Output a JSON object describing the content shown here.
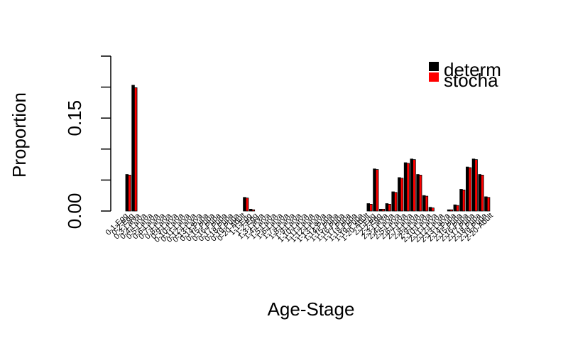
{
  "chart_data": {
    "type": "bar",
    "xlabel": "Age-Stage",
    "ylabel": "Proportion",
    "ylim": [
      0,
      0.25
    ],
    "yticks": [
      "0.00",
      "0.15"
    ],
    "legend": {
      "placement": "top-right",
      "entries": [
        "determ",
        "stocha"
      ]
    },
    "colors": {
      "determ": "#000000",
      "stocha": "#ff0000",
      "border": "#000000"
    },
    "categories": [
      "0-1-Egg",
      "0-2-Egg",
      "0-3-Larva",
      "0-4-Larva",
      "0-5-Larva",
      "0-6-Larva",
      "0-7-Larva",
      "0-8-Larva",
      "0-9-Larva",
      "0-10-Larva",
      "0-11-Larva",
      "0-12-Larva",
      "0-13-Larva",
      "0-14-Pupa",
      "0-15-Pupa",
      "0-16-Pupa",
      "0-17-Pupa",
      "0-18-Pupa",
      "0-19-Pupa",
      "0-20-Adult",
      "1-1-Egg",
      "1-2-Egg",
      "1-3-Larva",
      "1-4-Larva",
      "1-5-Larva",
      "1-6-Larva",
      "1-7-Larva",
      "1-8-Larva",
      "1-9-Larva",
      "1-10-Larva",
      "1-11-Larva",
      "1-12-Larva",
      "1-13-Larva",
      "1-14-Pupa",
      "1-15-Pupa",
      "1-16-Pupa",
      "1-17-Pupa",
      "1-18-Pupa",
      "1-19-Pupa",
      "1-20-Adult",
      "2-1-Egg",
      "2-2-Egg",
      "2-3-Larva",
      "2-4-Larva",
      "2-5-Larva",
      "2-6-Larva",
      "2-7-Larva",
      "2-8-Larva",
      "2-9-Larva",
      "2-10-Larva",
      "2-11-Larva",
      "2-12-Larva",
      "2-13-Larva",
      "2-14-Pupa",
      "2-15-Pupa",
      "2-16-Pupa",
      "2-17-Pupa",
      "2-18-Pupa",
      "2-19-Pupa",
      "2-20-Adult"
    ],
    "series": [
      {
        "name": "determ",
        "values": [
          0.059,
          0.203,
          0,
          0,
          0,
          0,
          0,
          0,
          0,
          0,
          0,
          0,
          0,
          0,
          0,
          0,
          0,
          0,
          0,
          0.022,
          0.003,
          0,
          0,
          0,
          0,
          0,
          0,
          0,
          0,
          0,
          0,
          0,
          0,
          0,
          0,
          0,
          0,
          0,
          0,
          0.012,
          0.068,
          0.003,
          0.012,
          0.031,
          0.054,
          0.078,
          0.084,
          0.059,
          0.025,
          0.006,
          0,
          0,
          0.002,
          0.01,
          0.035,
          0.071,
          0.084,
          0.059,
          0.023,
          0.0
        ]
      },
      {
        "name": "stocha",
        "values": [
          0.058,
          0.199,
          0,
          0,
          0,
          0,
          0,
          0,
          0,
          0,
          0,
          0,
          0,
          0,
          0,
          0,
          0,
          0,
          0,
          0.021,
          0.002,
          0,
          0,
          0,
          0,
          0,
          0,
          0,
          0,
          0,
          0,
          0,
          0,
          0,
          0,
          0,
          0,
          0,
          0,
          0.011,
          0.067,
          0.003,
          0.011,
          0.03,
          0.053,
          0.077,
          0.083,
          0.058,
          0.024,
          0.005,
          0,
          0,
          0.002,
          0.009,
          0.034,
          0.07,
          0.083,
          0.058,
          0.022,
          0.0
        ]
      }
    ]
  }
}
